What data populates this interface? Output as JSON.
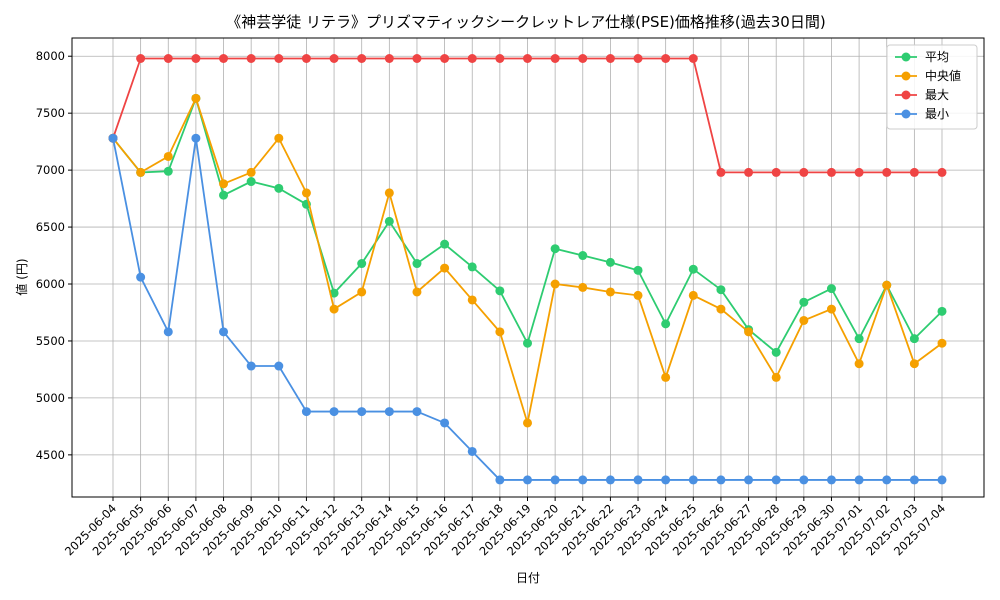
{
  "chart_data": {
    "type": "line",
    "title": "《神芸学徒 リテラ》プリズマティックシークレットレア仕様(PSE)価格推移(過去30日間)",
    "xlabel": "日付",
    "ylabel": "値 (円)",
    "ylim": [
      4130,
      8160
    ],
    "yticks": [
      4500,
      5000,
      5500,
      6000,
      6500,
      7000,
      7500,
      8000
    ],
    "grid": true,
    "legend_position": "top-right",
    "categories": [
      "2025-06-04",
      "2025-06-05",
      "2025-06-06",
      "2025-06-07",
      "2025-06-08",
      "2025-06-09",
      "2025-06-10",
      "2025-06-11",
      "2025-06-12",
      "2025-06-13",
      "2025-06-14",
      "2025-06-15",
      "2025-06-16",
      "2025-06-17",
      "2025-06-18",
      "2025-06-19",
      "2025-06-20",
      "2025-06-21",
      "2025-06-22",
      "2025-06-23",
      "2025-06-24",
      "2025-06-25",
      "2025-06-26",
      "2025-06-27",
      "2025-06-28",
      "2025-06-29",
      "2025-06-30",
      "2025-07-01",
      "2025-07-02",
      "2025-07-03",
      "2025-07-04"
    ],
    "series": [
      {
        "name": "平均",
        "color": "#2ecc71",
        "values": [
          7280,
          6980,
          6990,
          7630,
          6780,
          6900,
          6840,
          6700,
          5920,
          6180,
          6550,
          6180,
          6350,
          6150,
          5940,
          5480,
          6310,
          6250,
          6190,
          6120,
          5650,
          6130,
          5950,
          5600,
          5400,
          5840,
          5960,
          5520,
          5990,
          5520,
          5760
        ]
      },
      {
        "name": "中央値",
        "color": "#f5a000",
        "values": [
          7280,
          6980,
          7120,
          7630,
          6880,
          6980,
          7280,
          6800,
          5780,
          5930,
          6800,
          5930,
          6140,
          5860,
          5580,
          4780,
          6000,
          5970,
          5930,
          5900,
          5180,
          5900,
          5780,
          5580,
          5180,
          5680,
          5780,
          5300,
          5990,
          5300,
          5480
        ]
      },
      {
        "name": "最大",
        "color": "#ef4444",
        "values": [
          7280,
          7980,
          7980,
          7980,
          7980,
          7980,
          7980,
          7980,
          7980,
          7980,
          7980,
          7980,
          7980,
          7980,
          7980,
          7980,
          7980,
          7980,
          7980,
          7980,
          7980,
          7980,
          6980,
          6980,
          6980,
          6980,
          6980,
          6980,
          6980,
          6980,
          6980
        ]
      },
      {
        "name": "最小",
        "color": "#4a90e2",
        "values": [
          7280,
          6060,
          5580,
          7280,
          5580,
          5280,
          5280,
          4880,
          4880,
          4880,
          4880,
          4880,
          4780,
          4530,
          4280,
          4280,
          4280,
          4280,
          4280,
          4280,
          4280,
          4280,
          4280,
          4280,
          4280,
          4280,
          4280,
          4280,
          4280,
          4280,
          4280
        ]
      }
    ]
  }
}
